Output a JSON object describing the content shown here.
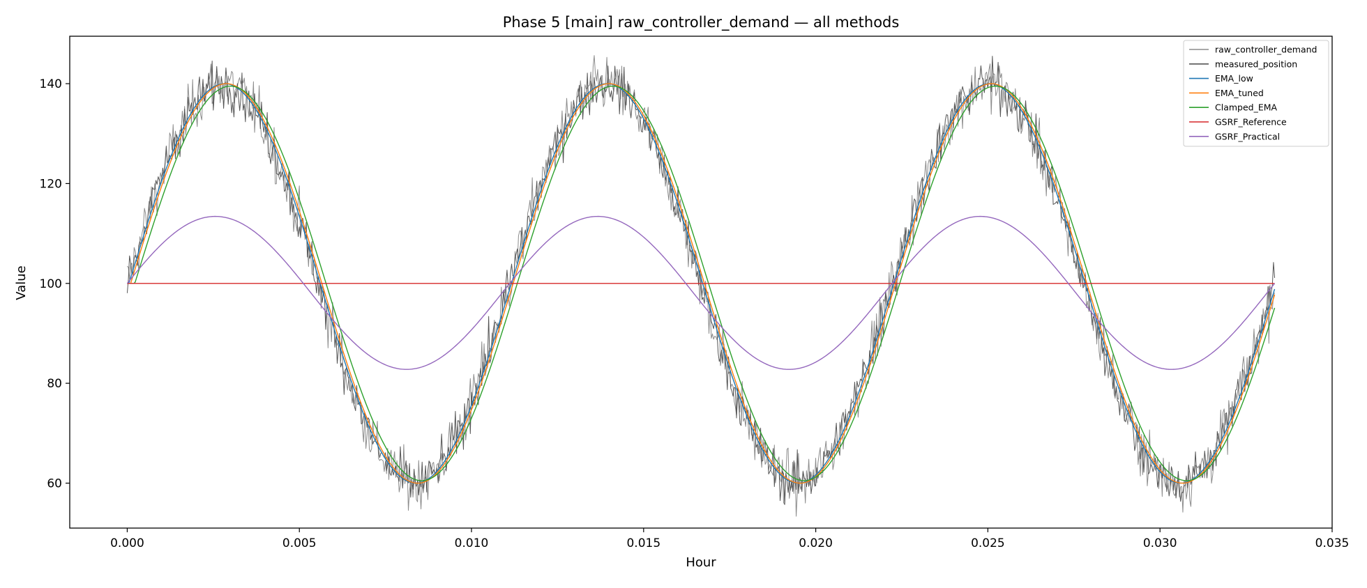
{
  "chart_data": {
    "type": "line",
    "title": "Phase 5 [main] raw_controller_demand — all methods",
    "xlabel": "Hour",
    "ylabel": "Value",
    "xlim": [
      -0.00167,
      0.035
    ],
    "ylim": [
      51,
      149.5
    ],
    "xticks": [
      0.0,
      0.005,
      0.01,
      0.015,
      0.02,
      0.025,
      0.03,
      0.035
    ],
    "xtick_labels": [
      "0.000",
      "0.005",
      "0.010",
      "0.015",
      "0.020",
      "0.025",
      "0.030",
      "0.035"
    ],
    "yticks": [
      60,
      80,
      100,
      120,
      140
    ],
    "ytick_labels": [
      "60",
      "80",
      "100",
      "120",
      "140"
    ],
    "grid": false,
    "legend_position": "top-right",
    "x_range": [
      0.0,
      0.03333
    ],
    "signal_period_hours": 0.01111,
    "series": [
      {
        "name": "raw_controller_demand",
        "color": "#8c8c8c",
        "form": "noisy sine",
        "base": 100,
        "amplitude": 40,
        "phase_lag_hours": 0.0,
        "noise_std": 2.6
      },
      {
        "name": "measured_position",
        "color": "#555555",
        "form": "noisy sine",
        "base": 100,
        "amplitude": 40,
        "phase_lag_hours": 0.0,
        "noise_std": 2.2
      },
      {
        "name": "EMA_low",
        "color": "#1f77b4",
        "form": "sine",
        "base": 100,
        "amplitude": 40,
        "phase_lag_hours": 5e-05
      },
      {
        "name": "EMA_tuned",
        "color": "#ff7f0e",
        "form": "sine",
        "base": 100,
        "amplitude": 40,
        "phase_lag_hours": 0.0001
      },
      {
        "name": "Clamped_EMA",
        "color": "#2ca02c",
        "form": "sine",
        "base": 100,
        "amplitude": 39.5,
        "phase_lag_hours": 0.00022
      },
      {
        "name": "GSRF_Reference",
        "color": "#d62728",
        "form": "constant",
        "base": 100
      },
      {
        "name": "GSRF_Practical",
        "color": "#9467bd",
        "form": "sine",
        "base": 98.1,
        "amplitude": 15.2,
        "phase_lag_hours": 0.0,
        "start_value": 100
      }
    ]
  }
}
